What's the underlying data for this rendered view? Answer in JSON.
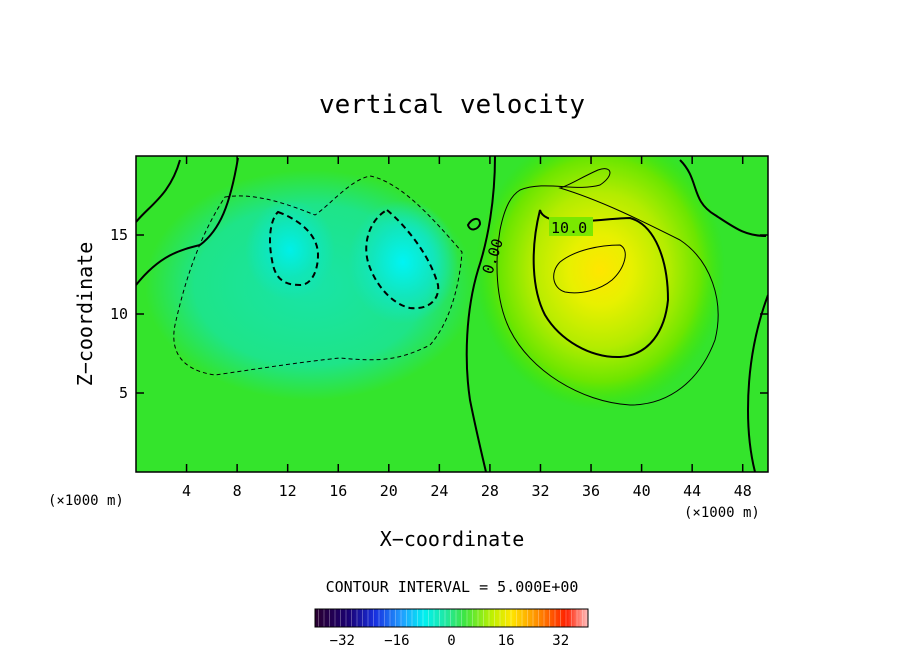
{
  "chart_data": {
    "type": "heatmap",
    "title": "vertical velocity",
    "xlabel": "X−coordinate",
    "ylabel": "Z−coordinate",
    "x_unit": "(×1000 m)",
    "y_unit": "(×1000 m)",
    "xlim": [
      0,
      50
    ],
    "ylim": [
      0,
      20
    ],
    "x_ticks": [
      4,
      8,
      12,
      16,
      20,
      24,
      28,
      32,
      36,
      40,
      44,
      48
    ],
    "y_ticks": [
      5,
      10,
      15
    ],
    "contour_labels": [
      "0.00",
      "10.0"
    ],
    "contour_interval_text": "CONTOUR INTERVAL = 5.000E+00",
    "colorbar": {
      "min": -40,
      "max": 40,
      "ticks": [
        -32,
        -16,
        0,
        16,
        32
      ],
      "tick_labels": [
        "−32",
        "−16",
        "0",
        "16",
        "32"
      ]
    },
    "features": [
      {
        "kind": "downdraft",
        "x": 12,
        "z": 14,
        "value": -8
      },
      {
        "kind": "downdraft",
        "x": 21,
        "z": 13.5,
        "value": -9
      },
      {
        "kind": "updraft",
        "x": 36,
        "z": 12.5,
        "value": 17
      }
    ]
  }
}
